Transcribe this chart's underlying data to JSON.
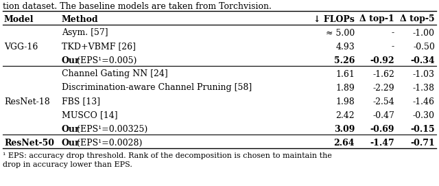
{
  "title_text": "tion dataset. The baseline models are taken from Torchvision.",
  "header": [
    "Model",
    "Method",
    "↓ FLOPs",
    "Δ top-1",
    "Δ top-5"
  ],
  "rows": [
    [
      "",
      "Asym. [57]",
      "≈ 5.00",
      "-",
      "-1.00"
    ],
    [
      "VGG-16",
      "TKD+VBMF [26]",
      "4.93",
      "-",
      "-0.50"
    ],
    [
      "",
      "Our (EPS¹=0.005)",
      "5.26",
      "-0.92",
      "-0.34"
    ],
    [
      "",
      "Channel Gating NN [24]",
      "1.61",
      "-1.62",
      "-1.03"
    ],
    [
      "",
      "Discrimination-aware Channel Pruning [58]",
      "1.89",
      "-2.29",
      "-1.38"
    ],
    [
      "ResNet-18",
      "FBS [13]",
      "1.98",
      "-2.54",
      "-1.46"
    ],
    [
      "",
      "MUSCO [14]",
      "2.42",
      "-0.47",
      "-0.30"
    ],
    [
      "",
      "Our (EPS¹=0.00325)",
      "3.09",
      "-0.69",
      "-0.15"
    ],
    [
      "ResNet-50",
      "Our (EPS¹=0.0028)",
      "2.64",
      "-1.47",
      "-0.71"
    ]
  ],
  "model_label_rows": {
    "VGG-16": 1,
    "ResNet-18": 5,
    "ResNet-50": 8
  },
  "bold_rows": [
    2,
    7,
    8
  ],
  "group_separators_after": [
    2,
    7
  ],
  "footnote": "¹ EPS: accuracy drop threshold. Rank of the decomposition is chosen to maintain the\ndrop in accuracy lower than EPS.",
  "font_size": 9.0,
  "header_font_size": 9.0,
  "footnote_font_size": 8.0,
  "bg_color": "white",
  "text_color": "black",
  "line_color": "black"
}
